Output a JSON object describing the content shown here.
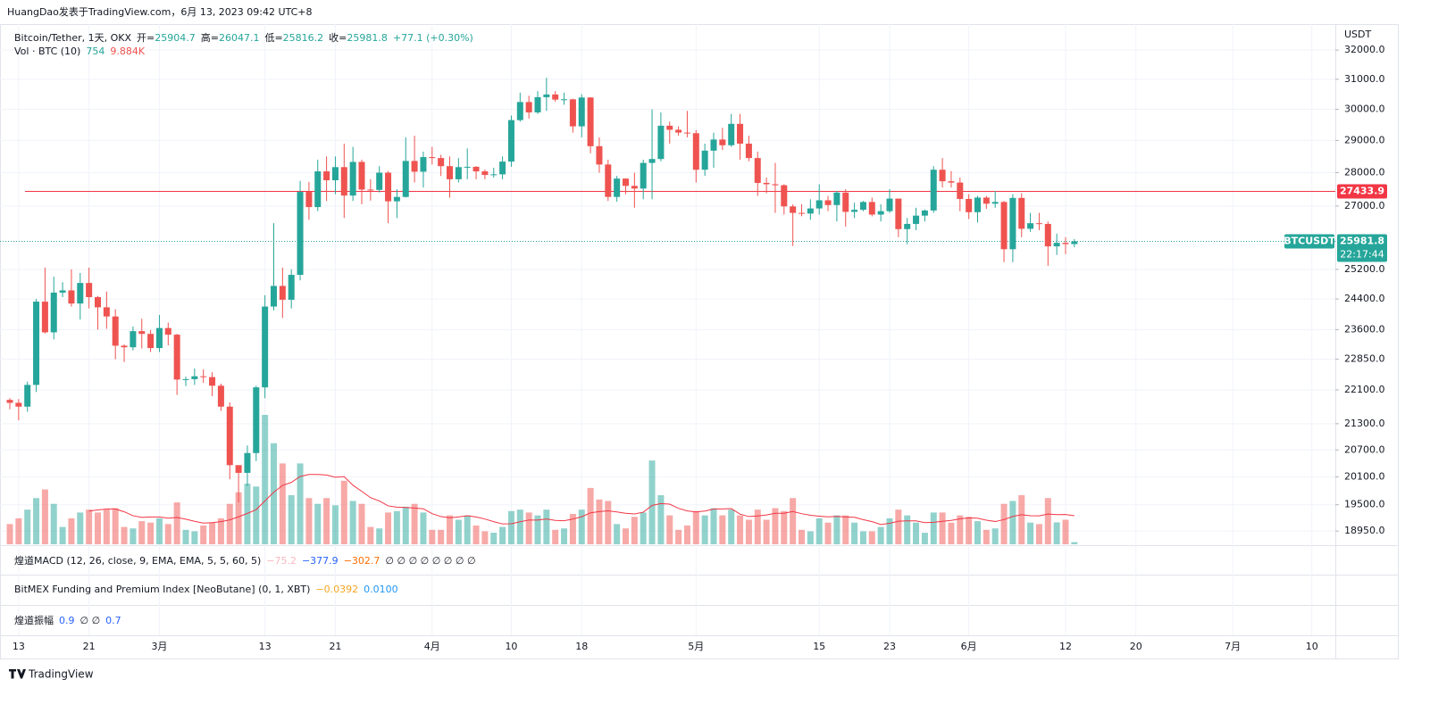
{
  "header": "HuangDao发表于TradingView.com，6月 13, 2023 09:42 UTC+8",
  "footer": "TradingView",
  "chart_data": {
    "type": "candlestick",
    "legend": {
      "symbol": "Bitcoin/Tether, 1天, OKX",
      "items": [
        {
          "label": "开=",
          "value": "25904.7"
        },
        {
          "label": "高=",
          "value": "26047.1"
        },
        {
          "label": "低=",
          "value": "25816.2"
        },
        {
          "label": "收=",
          "value": "25981.8"
        },
        {
          "label": "",
          "value": "+77.1 (+0.30%)"
        }
      ],
      "volume": {
        "label": "Vol · BTC (10)",
        "value": "754",
        "ma": "9.884K"
      }
    },
    "axis_unit": "USDT",
    "log_scale": true,
    "grid": true,
    "up_color": "#26a69a",
    "down_color": "#ef5350",
    "ylim": [
      18660,
      32920
    ],
    "yticks": [
      {
        "value": 32000,
        "label": "32000.0"
      },
      {
        "value": 31000,
        "label": "31000.0"
      },
      {
        "value": 30000,
        "label": "30000.0"
      },
      {
        "value": 29000,
        "label": "29000.0"
      },
      {
        "value": 28000,
        "label": "28000.0"
      },
      {
        "value": 27000,
        "label": "27000.0"
      },
      {
        "value": 25200,
        "label": "25200.0"
      },
      {
        "value": 24400,
        "label": "24400.0"
      },
      {
        "value": 23600,
        "label": "23600.0"
      },
      {
        "value": 22850,
        "label": "22850.0"
      },
      {
        "value": 22100,
        "label": "22100.0"
      },
      {
        "value": 21300,
        "label": "21300.0"
      },
      {
        "value": 20700,
        "label": "20700.0"
      },
      {
        "value": 20100,
        "label": "20100.0"
      },
      {
        "value": 19500,
        "label": "19500.0"
      },
      {
        "value": 18950,
        "label": "18950.0"
      }
    ],
    "xticks": [
      "13",
      "21",
      "3月",
      "13",
      "21",
      "4月",
      "10",
      "18",
      "5月",
      "15",
      "23",
      "6月",
      "12",
      "20",
      "7月",
      "10"
    ],
    "ohlc": [
      [
        21860,
        21900,
        21640,
        21790
      ],
      [
        21790,
        21880,
        21380,
        21700
      ],
      [
        21700,
        22300,
        21580,
        22220
      ],
      [
        22220,
        24400,
        22050,
        24330
      ],
      [
        24330,
        25250,
        23500,
        23530
      ],
      [
        23530,
        25000,
        23350,
        24570
      ],
      [
        24570,
        24850,
        24450,
        24630
      ],
      [
        24630,
        25200,
        24200,
        24280
      ],
      [
        24280,
        25100,
        23860,
        24830
      ],
      [
        24830,
        25250,
        24150,
        24450
      ],
      [
        24450,
        24480,
        23600,
        24180
      ],
      [
        24180,
        24600,
        23620,
        23940
      ],
      [
        23940,
        24130,
        22850,
        23190
      ],
      [
        23190,
        23220,
        22780,
        23150
      ],
      [
        23150,
        23680,
        23070,
        23560
      ],
      [
        23560,
        23880,
        23120,
        23490
      ],
      [
        23490,
        23590,
        23030,
        23130
      ],
      [
        23130,
        23980,
        23030,
        23640
      ],
      [
        23640,
        23780,
        23200,
        23470
      ],
      [
        23470,
        23490,
        21980,
        22350
      ],
      [
        22350,
        22420,
        22190,
        22360
      ],
      [
        22360,
        22620,
        22220,
        22430
      ],
      [
        22430,
        22600,
        22270,
        22410
      ],
      [
        22410,
        22530,
        21950,
        22200
      ],
      [
        22200,
        22250,
        21600,
        21700
      ],
      [
        21700,
        21800,
        20050,
        20360
      ],
      [
        20360,
        20360,
        19550,
        20190
      ],
      [
        20190,
        20800,
        19900,
        20630
      ],
      [
        20630,
        22200,
        20450,
        22160
      ],
      [
        22160,
        24500,
        21900,
        24200
      ],
      [
        24200,
        26500,
        24100,
        24750
      ],
      [
        24750,
        25250,
        23900,
        24380
      ],
      [
        24380,
        25200,
        24150,
        25050
      ],
      [
        25050,
        27750,
        24900,
        27420
      ],
      [
        27420,
        27720,
        26600,
        26970
      ],
      [
        26970,
        28400,
        26850,
        28040
      ],
      [
        28040,
        28500,
        27150,
        27770
      ],
      [
        27770,
        28500,
        27350,
        28170
      ],
      [
        28170,
        28900,
        26650,
        27310
      ],
      [
        27310,
        28800,
        27150,
        28330
      ],
      [
        28330,
        28400,
        27050,
        27490
      ],
      [
        27490,
        27800,
        27160,
        27480
      ],
      [
        27480,
        28200,
        27400,
        28000
      ],
      [
        28000,
        28050,
        26500,
        27140
      ],
      [
        27140,
        27500,
        26650,
        27270
      ],
      [
        27270,
        29100,
        27250,
        28360
      ],
      [
        28360,
        29150,
        27700,
        28030
      ],
      [
        28030,
        28650,
        27550,
        28480
      ],
      [
        28480,
        28800,
        28250,
        28450
      ],
      [
        28450,
        28550,
        27900,
        28200
      ],
      [
        28200,
        28500,
        27250,
        27800
      ],
      [
        27800,
        28450,
        27700,
        28170
      ],
      [
        28170,
        28750,
        27800,
        28180
      ],
      [
        28180,
        28200,
        27800,
        28040
      ],
      [
        28040,
        28100,
        27800,
        27930
      ],
      [
        27930,
        28150,
        27850,
        27950
      ],
      [
        27950,
        28500,
        27800,
        28340
      ],
      [
        28340,
        29800,
        28180,
        29650
      ],
      [
        29650,
        30550,
        29600,
        30240
      ],
      [
        30240,
        30450,
        29700,
        29900
      ],
      [
        29900,
        30600,
        29850,
        30400
      ],
      [
        30400,
        31050,
        29950,
        30490
      ],
      [
        30490,
        30600,
        30250,
        30320
      ],
      [
        30320,
        30550,
        30150,
        30330
      ],
      [
        30330,
        30350,
        29250,
        29450
      ],
      [
        29450,
        30500,
        29100,
        30390
      ],
      [
        30390,
        30400,
        28600,
        28820
      ],
      [
        28820,
        29100,
        28000,
        28250
      ],
      [
        28250,
        28400,
        27150,
        27270
      ],
      [
        27270,
        27900,
        27130,
        27820
      ],
      [
        27820,
        27830,
        27350,
        27600
      ],
      [
        27600,
        28000,
        26950,
        27520
      ],
      [
        27520,
        28400,
        27200,
        28300
      ],
      [
        28300,
        30000,
        27200,
        28420
      ],
      [
        28420,
        29900,
        28350,
        29470
      ],
      [
        29470,
        29600,
        28900,
        29340
      ],
      [
        29340,
        29450,
        29150,
        29250
      ],
      [
        29250,
        29950,
        29100,
        29230
      ],
      [
        29230,
        29330,
        27700,
        28090
      ],
      [
        28090,
        28900,
        27900,
        28680
      ],
      [
        28680,
        29250,
        28150,
        29030
      ],
      [
        29030,
        29400,
        28700,
        28850
      ],
      [
        28850,
        29850,
        28800,
        29530
      ],
      [
        29530,
        29850,
        28400,
        28900
      ],
      [
        28900,
        29150,
        28350,
        28450
      ],
      [
        28450,
        28650,
        27300,
        27690
      ],
      [
        27690,
        27850,
        27380,
        27650
      ],
      [
        27650,
        28300,
        26800,
        27620
      ],
      [
        27620,
        27650,
        26750,
        26990
      ],
      [
        26990,
        27050,
        25850,
        26800
      ],
      [
        26800,
        27050,
        26700,
        26780
      ],
      [
        26780,
        27200,
        26600,
        26930
      ],
      [
        26930,
        27650,
        26750,
        27170
      ],
      [
        27170,
        27300,
        26850,
        27030
      ],
      [
        27030,
        27450,
        26550,
        27400
      ],
      [
        27400,
        27500,
        26400,
        26830
      ],
      [
        26830,
        27100,
        26650,
        26890
      ],
      [
        26890,
        27150,
        26850,
        27120
      ],
      [
        27120,
        27250,
        26700,
        26750
      ],
      [
        26750,
        27050,
        26550,
        26850
      ],
      [
        26850,
        27500,
        26800,
        27220
      ],
      [
        27220,
        27220,
        26100,
        26330
      ],
      [
        26330,
        26650,
        25900,
        26480
      ],
      [
        26480,
        26950,
        26300,
        26720
      ],
      [
        26720,
        26900,
        26550,
        26870
      ],
      [
        26870,
        28200,
        26800,
        28090
      ],
      [
        28090,
        28450,
        27550,
        27740
      ],
      [
        27740,
        28050,
        27550,
        27700
      ],
      [
        27700,
        27850,
        26850,
        27210
      ],
      [
        27210,
        27350,
        26620,
        26820
      ],
      [
        26820,
        27300,
        26520,
        27250
      ],
      [
        27250,
        27300,
        26920,
        27070
      ],
      [
        27070,
        27450,
        26950,
        27120
      ],
      [
        27120,
        27150,
        25400,
        25760
      ],
      [
        25760,
        27350,
        25400,
        27240
      ],
      [
        27240,
        27380,
        26100,
        26340
      ],
      [
        26340,
        26800,
        26250,
        26500
      ],
      [
        26500,
        26800,
        26300,
        26480
      ],
      [
        26480,
        26550,
        25300,
        25840
      ],
      [
        25840,
        26200,
        25600,
        25940
      ],
      [
        25940,
        26100,
        25620,
        25904.7
      ],
      [
        25904.7,
        26047.1,
        25816.2,
        25981.8
      ]
    ],
    "volumes": [
      7000,
      9000,
      12000,
      16000,
      19000,
      14000,
      6000,
      9000,
      11000,
      12000,
      11000,
      12000,
      12500,
      6000,
      5500,
      8000,
      7500,
      9000,
      7000,
      14500,
      5000,
      4500,
      6500,
      7500,
      9000,
      14000,
      18000,
      21000,
      20000,
      44800,
      35000,
      28000,
      17000,
      28000,
      16000,
      14000,
      16000,
      13500,
      22000,
      15000,
      14000,
      6000,
      5500,
      11000,
      11500,
      13000,
      14000,
      11000,
      5000,
      5000,
      10000,
      8500,
      10000,
      6500,
      4500,
      4000,
      6000,
      11500,
      12000,
      11000,
      10000,
      12000,
      5000,
      5500,
      10500,
      12000,
      19500,
      15500,
      15000,
      7000,
      5500,
      9500,
      11000,
      29000,
      17000,
      10000,
      5000,
      6500,
      11500,
      10000,
      12500,
      10000,
      12000,
      10000,
      8500,
      12000,
      8500,
      12500,
      11500,
      16000,
      5000,
      4500,
      9000,
      7500,
      10000,
      10000,
      7500,
      4500,
      4500,
      6000,
      9000,
      12000,
      10000,
      7500,
      4000,
      11000,
      11000,
      7500,
      10000,
      9500,
      8000,
      5000,
      5500,
      14000,
      15000,
      17000,
      7500,
      7000,
      16000,
      7586,
      8500,
      754
    ],
    "level_line": {
      "value": 27433.9,
      "label": "27433.9",
      "color": "#f23645"
    },
    "last_price": {
      "symbol": "BTCUSDT",
      "value": 25981.8,
      "label": "25981.8",
      "countdown": "22:17:44"
    },
    "indicators": [
      {
        "name": "煌道MACD (12, 26, close, 9, EMA, EMA, 5, 5, 60, 5)",
        "values": [
          {
            "text": "−75.2",
            "color": "#f7b9c3"
          },
          {
            "text": "−377.9",
            "color": "#2962ff"
          },
          {
            "text": "−302.7",
            "color": "#ff6d00"
          },
          {
            "text": "∅ ∅ ∅ ∅ ∅ ∅ ∅ ∅",
            "color": "#131722"
          }
        ]
      },
      {
        "name": "BitMEX Funding and Premium Index [NeoButane] (0, 1, XBT)",
        "values": [
          {
            "text": "−0.0392",
            "color": "#f5a623"
          },
          {
            "text": "0.0100",
            "color": "#2196f3"
          }
        ]
      },
      {
        "name": "煌道振幅",
        "values": [
          {
            "text": "0.9",
            "color": "#2962ff"
          },
          {
            "text": "∅ ∅",
            "color": "#131722"
          },
          {
            "text": "0.7",
            "color": "#2962ff"
          }
        ]
      }
    ]
  }
}
